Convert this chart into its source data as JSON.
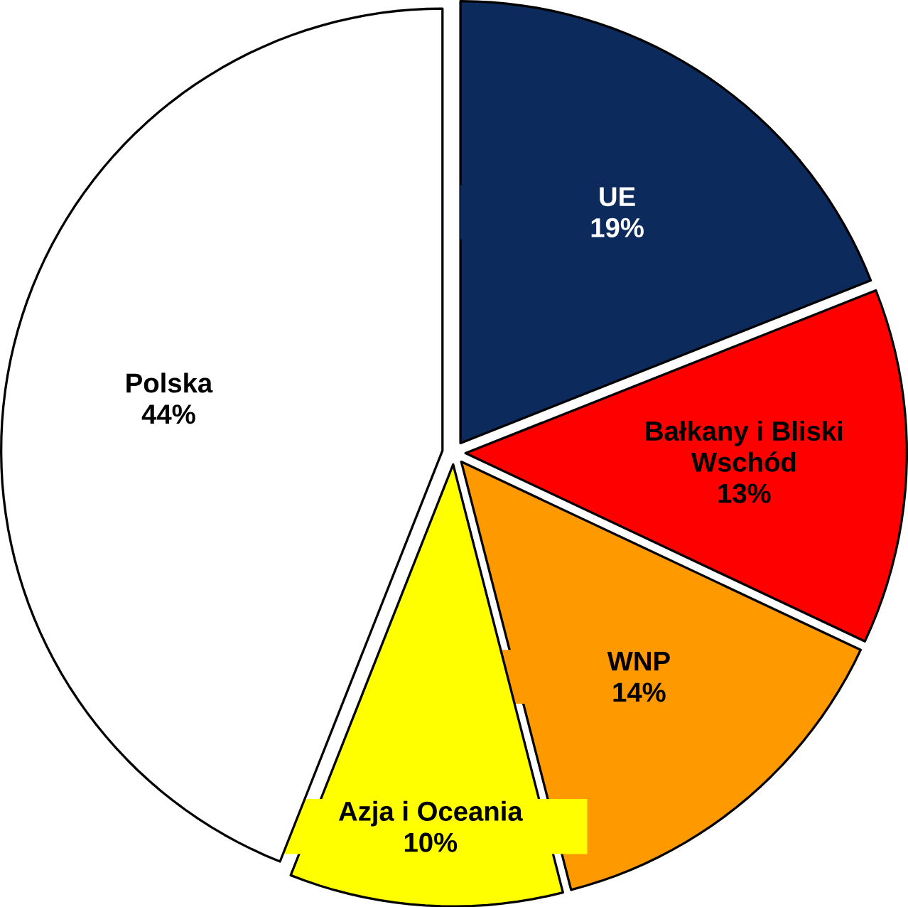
{
  "chart_data": {
    "type": "pie",
    "categories": [
      "UE",
      "Bałkany i Bliski Wschód",
      "WNP",
      "Azja i Oceania",
      "Polska"
    ],
    "values": [
      19,
      13,
      14,
      10,
      44
    ],
    "colors": [
      "#0c2a5c",
      "#ff0000",
      "#ff9900",
      "#ffff00",
      "#ffffff"
    ],
    "value_labels": [
      "19%",
      "13%",
      "14%",
      "10%",
      "44%"
    ]
  }
}
